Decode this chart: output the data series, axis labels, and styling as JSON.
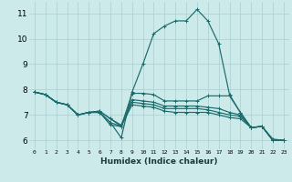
{
  "xlabel": "Humidex (Indice chaleur)",
  "bg_color": "#cdeaea",
  "grid_color": "#aacece",
  "line_color": "#1a6b6b",
  "xlim": [
    -0.5,
    23.5
  ],
  "ylim": [
    5.65,
    11.45
  ],
  "xticks": [
    0,
    1,
    2,
    3,
    4,
    5,
    6,
    7,
    8,
    9,
    10,
    11,
    12,
    13,
    14,
    15,
    16,
    17,
    18,
    19,
    20,
    21,
    22,
    23
  ],
  "yticks": [
    6,
    7,
    8,
    9,
    10,
    11
  ],
  "lines": [
    [
      7.9,
      7.8,
      7.5,
      7.4,
      7.0,
      7.1,
      7.1,
      6.7,
      6.1,
      7.9,
      9.0,
      10.2,
      10.5,
      10.7,
      10.7,
      11.15,
      10.7,
      9.8,
      7.8,
      7.1,
      6.5,
      6.55,
      6.0,
      6.0
    ],
    [
      7.9,
      7.8,
      7.5,
      7.4,
      7.0,
      7.1,
      7.1,
      6.7,
      6.55,
      7.85,
      7.85,
      7.8,
      7.55,
      7.55,
      7.55,
      7.55,
      7.75,
      7.75,
      7.75,
      7.1,
      6.5,
      6.55,
      6.05,
      6.0
    ],
    [
      7.9,
      7.8,
      7.5,
      7.4,
      7.0,
      7.1,
      7.15,
      6.85,
      6.6,
      7.6,
      7.55,
      7.5,
      7.35,
      7.35,
      7.35,
      7.35,
      7.3,
      7.25,
      7.1,
      7.0,
      6.5,
      6.55,
      6.0,
      6.0
    ],
    [
      7.9,
      7.8,
      7.5,
      7.4,
      7.0,
      7.1,
      7.15,
      6.85,
      6.55,
      7.5,
      7.45,
      7.4,
      7.25,
      7.25,
      7.25,
      7.25,
      7.2,
      7.1,
      7.0,
      6.95,
      6.5,
      6.55,
      6.0,
      6.0
    ],
    [
      7.9,
      7.8,
      7.5,
      7.4,
      7.0,
      7.1,
      7.1,
      6.6,
      6.55,
      7.4,
      7.35,
      7.3,
      7.15,
      7.1,
      7.1,
      7.1,
      7.1,
      7.0,
      6.9,
      6.85,
      6.5,
      6.55,
      6.0,
      6.0
    ]
  ]
}
